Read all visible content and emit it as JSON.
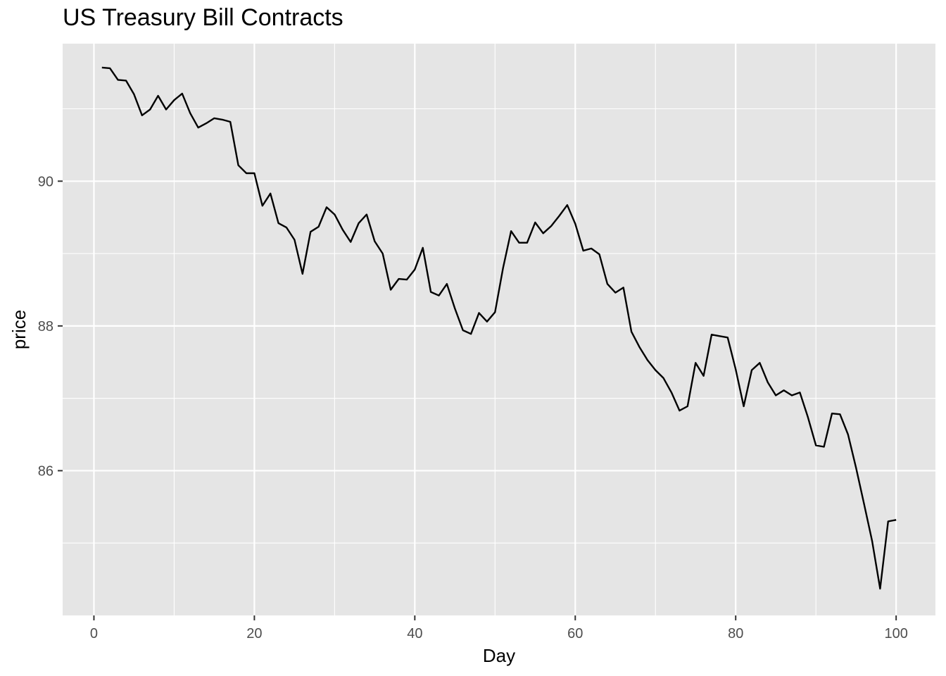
{
  "chart_data": {
    "type": "line",
    "title": "US Treasury Bill Contracts",
    "xlabel": "Day",
    "ylabel": "price",
    "xlim": [
      -3.9,
      104.9
    ],
    "ylim": [
      84.0,
      91.9
    ],
    "x_ticks": [
      0,
      20,
      40,
      60,
      80,
      100
    ],
    "x_tick_labels": [
      "0",
      "20",
      "40",
      "60",
      "80",
      "100"
    ],
    "y_ticks": [
      86,
      88,
      90
    ],
    "y_tick_labels": [
      "86",
      "88",
      "90"
    ],
    "x_minor_ticks": [
      10,
      30,
      50,
      70,
      90
    ],
    "y_minor_ticks": [
      85,
      87,
      89,
      91
    ],
    "grid": true,
    "colors": {
      "panel": "#e5e5e5",
      "grid": "#ffffff",
      "line": "#000000",
      "tick_text": "#4d4d4d"
    },
    "series": [
      {
        "x": [
          1,
          2,
          3,
          4,
          5,
          6,
          7,
          8,
          9,
          10,
          11,
          12,
          13,
          14,
          15,
          16,
          17,
          18,
          19,
          20,
          21,
          22,
          23,
          24,
          25,
          26,
          27,
          28,
          29,
          30,
          31,
          32,
          33,
          34,
          35,
          36,
          37,
          38,
          39,
          40,
          41,
          42,
          43,
          44,
          45,
          46,
          47,
          48,
          49,
          50,
          51,
          52,
          53,
          54,
          55,
          56,
          57,
          58,
          59,
          60,
          61,
          62,
          63,
          64,
          65,
          66,
          67,
          68,
          69,
          70,
          71,
          72,
          73,
          74,
          75,
          76,
          77,
          78,
          79,
          80,
          81,
          82,
          83,
          84,
          85,
          86,
          87,
          88,
          89,
          90,
          91,
          92,
          93,
          94,
          95,
          96,
          97,
          98,
          99,
          100
        ],
        "values": [
          91.57,
          91.56,
          91.4,
          91.39,
          91.2,
          90.91,
          90.99,
          91.18,
          90.99,
          91.12,
          91.21,
          90.94,
          90.74,
          90.8,
          90.87,
          90.85,
          90.82,
          90.22,
          90.11,
          90.11,
          89.66,
          89.83,
          89.42,
          89.36,
          89.19,
          88.72,
          89.3,
          89.37,
          89.64,
          89.54,
          89.33,
          89.16,
          89.42,
          89.54,
          89.17,
          89.0,
          88.5,
          88.65,
          88.64,
          88.78,
          89.08,
          88.47,
          88.42,
          88.58,
          88.24,
          87.94,
          87.89,
          88.18,
          88.06,
          88.19,
          88.8,
          89.31,
          89.15,
          89.15,
          89.43,
          89.28,
          89.38,
          89.52,
          89.67,
          89.41,
          89.04,
          89.07,
          88.99,
          88.58,
          88.46,
          88.53,
          87.92,
          87.71,
          87.53,
          87.39,
          87.28,
          87.08,
          86.83,
          86.89,
          87.49,
          87.31,
          87.88,
          87.86,
          87.84,
          87.4,
          86.89,
          87.39,
          87.49,
          87.22,
          87.04,
          87.11,
          87.04,
          87.08,
          86.74,
          86.35,
          86.33,
          86.79,
          86.78,
          86.5,
          86.04,
          85.54,
          85.03,
          84.37,
          85.3,
          85.32
        ]
      }
    ]
  }
}
